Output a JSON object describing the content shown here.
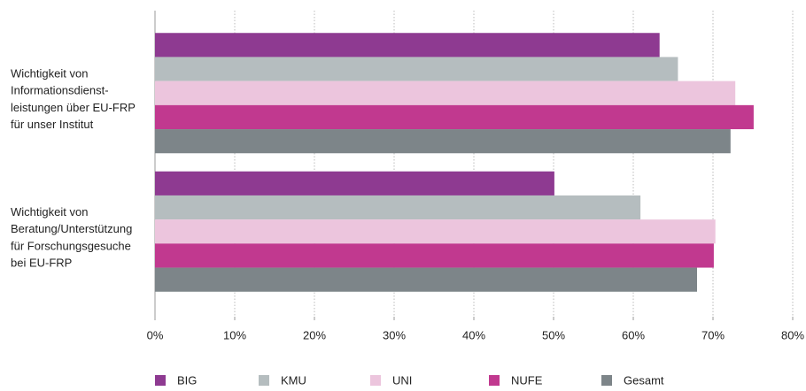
{
  "chart_data": {
    "type": "bar",
    "orientation": "horizontal",
    "categories": [
      "Wichtigkeit von\nInformationsdienst-\nleistungen über EU-FRP\nfür unser Institut",
      "Wichtigkeit von\nBeratung/Unterstützung\nfür Forschungsgesuche\nbei EU-FRP"
    ],
    "series": [
      {
        "name": "BIG",
        "color": "#8e3a91",
        "values": [
          63.3,
          50.1
        ]
      },
      {
        "name": "KMU",
        "color": "#b5bdbf",
        "values": [
          65.6,
          60.9
        ]
      },
      {
        "name": "UNI",
        "color": "#ecc5dd",
        "values": [
          72.8,
          70.3
        ]
      },
      {
        "name": "NUFE",
        "color": "#c1398f",
        "values": [
          75.1,
          70.1
        ]
      },
      {
        "name": "Gesamt",
        "color": "#7d8589",
        "values": [
          72.2,
          68.0
        ]
      }
    ],
    "xlim": [
      0,
      80
    ],
    "xticks": [
      {
        "value": 0,
        "label": "0%"
      },
      {
        "value": 10,
        "label": "10%"
      },
      {
        "value": 20,
        "label": "20%"
      },
      {
        "value": 30,
        "label": "30%"
      },
      {
        "value": 40,
        "label": "40%"
      },
      {
        "value": 50,
        "label": "50%"
      },
      {
        "value": 60,
        "label": "60%"
      },
      {
        "value": 70,
        "label": "70%"
      },
      {
        "value": 80,
        "label": "80%"
      }
    ],
    "grid": true,
    "legend": "bottom"
  }
}
